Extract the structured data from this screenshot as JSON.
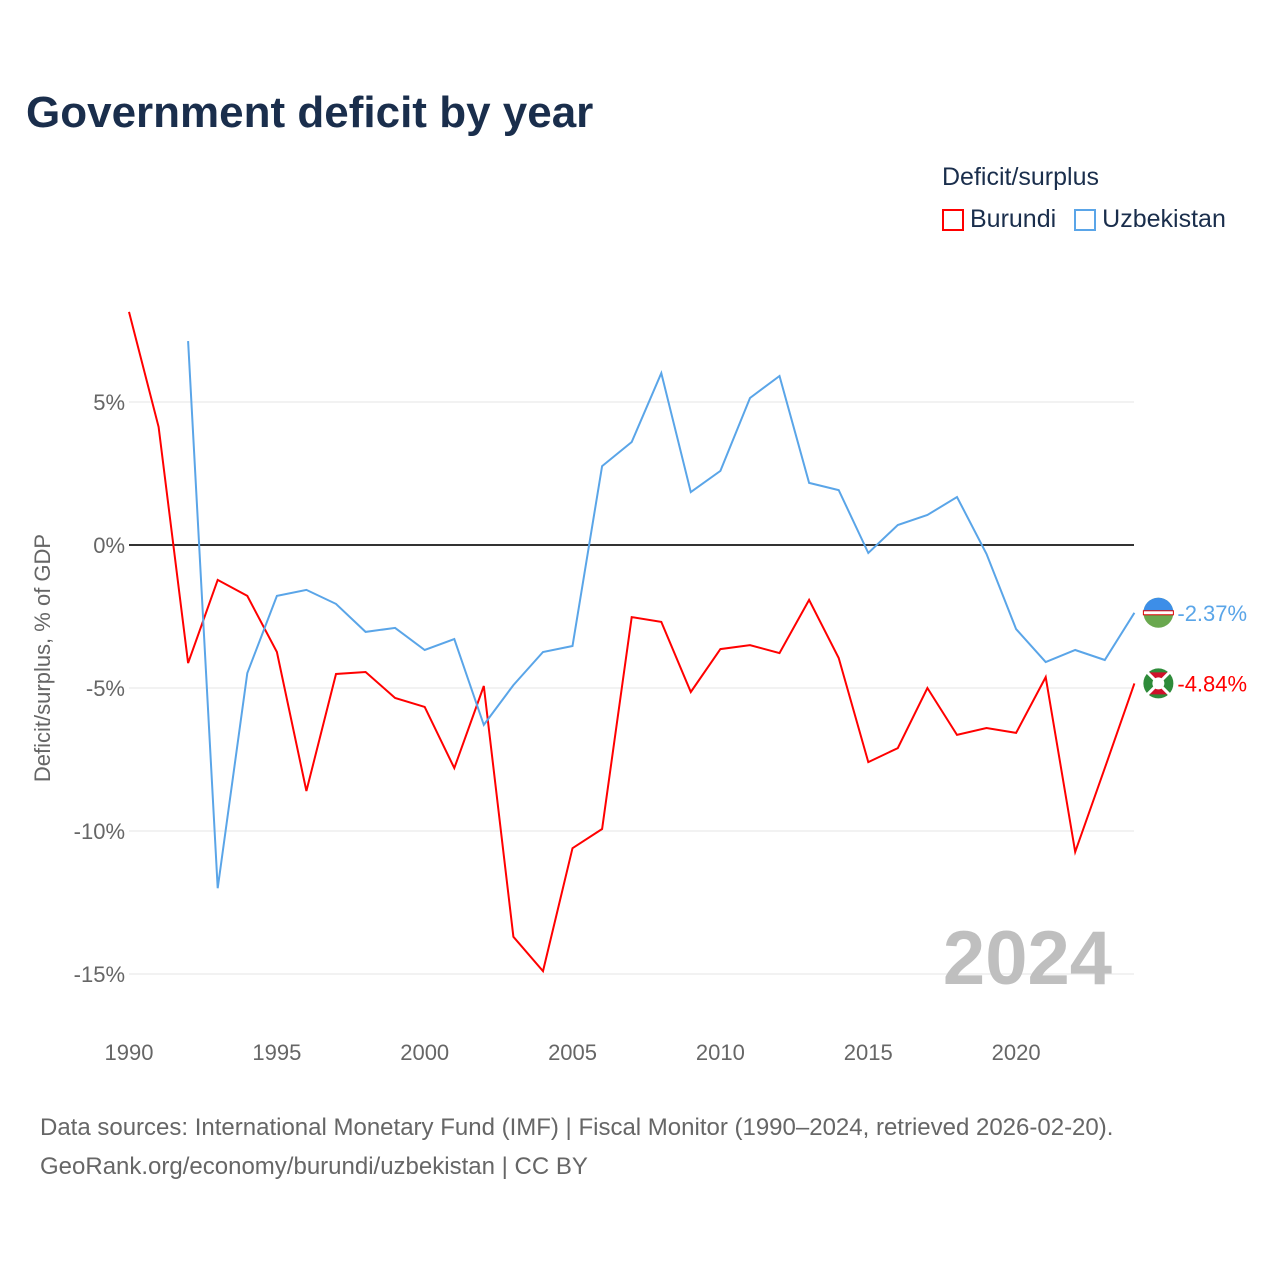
{
  "title": "Government deficit by year",
  "legend": {
    "title": "Deficit/surplus",
    "items": [
      {
        "label": "Burundi",
        "color": "#ff0000"
      },
      {
        "label": "Uzbekistan",
        "color": "#5aa5e8"
      }
    ]
  },
  "source_line1": "Data sources: International Monetary Fund (IMF) | Fiscal Monitor (1990–2024, retrieved 2026-02-20).",
  "source_line2": "GeoRank.org/economy/burundi/uzbekistan | CC BY",
  "chart_data": {
    "type": "line",
    "title": "Government deficit by year",
    "xlabel": "",
    "ylabel": "Deficit/surplus, % of GDP",
    "xlim": [
      1990,
      2024
    ],
    "ylim": [
      -16.5,
      8.5
    ],
    "xticks": [
      1990,
      1995,
      2000,
      2005,
      2010,
      2015,
      2020
    ],
    "xtick_labels": [
      "1990",
      "1995",
      "2000",
      "2005",
      "2010",
      "2015",
      "2020"
    ],
    "yticks": [
      5,
      0,
      -5,
      -10,
      -15
    ],
    "ytick_labels": [
      "5%",
      "0%",
      "-5%",
      "-10%",
      "-15%"
    ],
    "watermark": "2024",
    "series": [
      {
        "name": "Burundi",
        "color": "#ff0000",
        "end_label": "-4.84%",
        "x": [
          1990,
          1991,
          1992,
          1993,
          1994,
          1995,
          1996,
          1997,
          1998,
          1999,
          2000,
          2001,
          2002,
          2003,
          2004,
          2005,
          2006,
          2007,
          2008,
          2009,
          2010,
          2011,
          2012,
          2013,
          2014,
          2015,
          2016,
          2017,
          2018,
          2019,
          2020,
          2021,
          2022,
          2023,
          2024
        ],
        "values": [
          8.15,
          4.13,
          -4.13,
          -1.22,
          -1.78,
          -3.74,
          -8.6,
          -4.51,
          -4.44,
          -5.35,
          -5.66,
          -7.8,
          -4.93,
          -13.7,
          -14.9,
          -10.6,
          -9.93,
          -2.52,
          -2.69,
          -5.14,
          -3.64,
          -3.5,
          -3.78,
          -1.92,
          -3.95,
          -7.59,
          -7.1,
          -5.0,
          -6.64,
          -6.4,
          -6.57,
          -4.62,
          -10.73,
          -7.8,
          -4.84
        ]
      },
      {
        "name": "Uzbekistan",
        "color": "#5aa5e8",
        "end_label": "-2.37%",
        "x": [
          1992,
          1993,
          1994,
          1995,
          1996,
          1997,
          1998,
          1999,
          2000,
          2001,
          2002,
          2003,
          2004,
          2005,
          2006,
          2007,
          2008,
          2009,
          2010,
          2011,
          2012,
          2013,
          2014,
          2015,
          2016,
          2017,
          2018,
          2019,
          2020,
          2021,
          2022,
          2023,
          2024
        ],
        "values": [
          7.13,
          -12.0,
          -4.48,
          -1.78,
          -1.57,
          -2.06,
          -3.04,
          -2.9,
          -3.67,
          -3.29,
          -6.29,
          -4.9,
          -3.74,
          -3.53,
          2.76,
          3.6,
          6.01,
          1.85,
          2.59,
          5.14,
          5.91,
          2.17,
          1.92,
          -0.28,
          0.7,
          1.05,
          1.68,
          -0.31,
          -2.94,
          -4.09,
          -3.67,
          -4.02,
          -2.37
        ]
      }
    ]
  }
}
